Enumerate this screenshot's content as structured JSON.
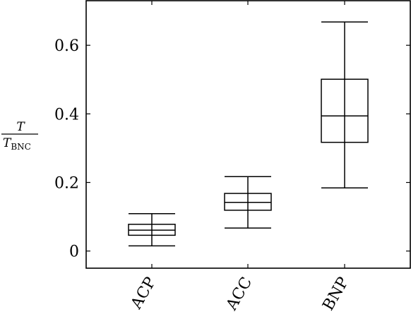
{
  "chart_data": {
    "type": "boxplot",
    "title": "",
    "xlabel": "",
    "ylabel": {
      "numerator": "T",
      "denominator": "T",
      "denominator_subscript": "BNC"
    },
    "ylim": [
      -0.05,
      0.73
    ],
    "yticks": [
      0,
      0.2,
      0.4,
      0.6
    ],
    "ytick_labels": [
      "0",
      "0.2",
      "0.4",
      "0.6"
    ],
    "grid": false,
    "categories": [
      "ACP",
      "ACC",
      "BNP"
    ],
    "boxes": [
      {
        "name": "ACP",
        "whisker_low": 0.015,
        "q1": 0.046,
        "median": 0.061,
        "q3": 0.078,
        "whisker_high": 0.109
      },
      {
        "name": "ACC",
        "whisker_low": 0.067,
        "q1": 0.119,
        "median": 0.142,
        "q3": 0.168,
        "whisker_high": 0.217
      },
      {
        "name": "BNP",
        "whisker_low": 0.184,
        "q1": 0.317,
        "median": 0.394,
        "q3": 0.501,
        "whisker_high": 0.668
      }
    ]
  }
}
